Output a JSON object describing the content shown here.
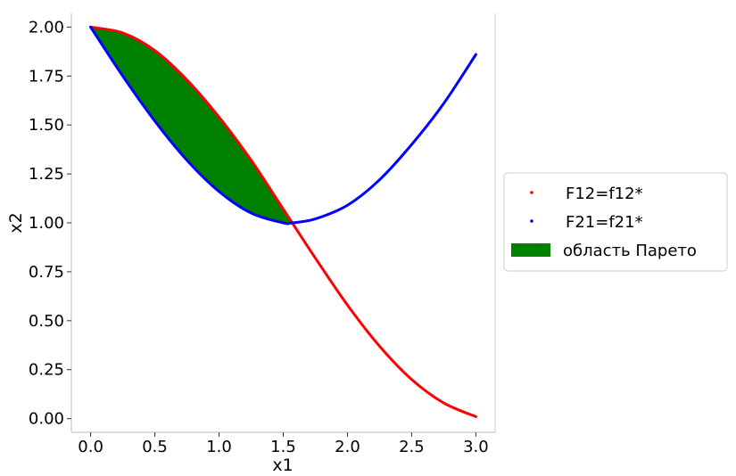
{
  "chart_data": {
    "type": "line",
    "title": "",
    "xlabel": "x1",
    "ylabel": "x2",
    "xlim": [
      -0.15,
      3.15
    ],
    "ylim": [
      -0.07,
      2.07
    ],
    "x_ticks": [
      0.0,
      0.5,
      1.0,
      1.5,
      2.0,
      2.5,
      3.0
    ],
    "x_tick_labels": [
      "0.0",
      "0.5",
      "1.0",
      "1.5",
      "2.0",
      "2.5",
      "3.0"
    ],
    "y_ticks": [
      0.0,
      0.25,
      0.5,
      0.75,
      1.0,
      1.25,
      1.5,
      1.75,
      2.0
    ],
    "y_tick_labels": [
      "0.00",
      "0.25",
      "0.50",
      "0.75",
      "1.00",
      "1.25",
      "1.50",
      "1.75",
      "2.00"
    ],
    "grid": false,
    "legend_position": "right, outside plot area",
    "series": [
      {
        "name": "F12=f12*",
        "color": "#ff0000",
        "x": [
          0.0,
          0.25,
          0.5,
          0.75,
          1.0,
          1.25,
          1.5,
          1.57,
          1.75,
          2.0,
          2.25,
          2.5,
          2.75,
          3.0
        ],
        "y": [
          2.0,
          1.97,
          1.88,
          1.73,
          1.54,
          1.32,
          1.07,
          1.0,
          0.82,
          0.58,
          0.37,
          0.2,
          0.08,
          0.01
        ]
      },
      {
        "name": "F21=f21*",
        "color": "#0000ff",
        "x": [
          0.0,
          0.25,
          0.5,
          0.75,
          1.0,
          1.25,
          1.5,
          1.57,
          1.75,
          2.0,
          2.25,
          2.5,
          2.75,
          3.0
        ],
        "y": [
          2.0,
          1.75,
          1.52,
          1.32,
          1.16,
          1.05,
          1.0,
          1.0,
          1.02,
          1.09,
          1.22,
          1.4,
          1.61,
          1.86
        ]
      }
    ],
    "fill": {
      "name": "область Парето",
      "color": "#008000",
      "x_range": [
        0.0,
        1.57
      ]
    }
  }
}
